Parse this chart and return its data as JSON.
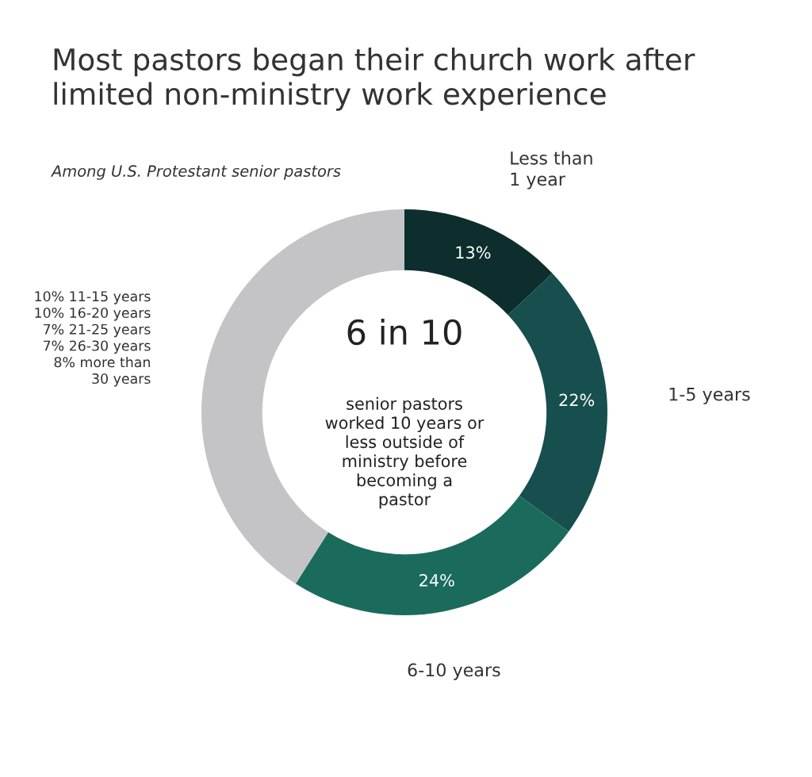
{
  "chart_data": {
    "type": "donut",
    "title": "Most pastors began their church work after\nlimited non-ministry work experience",
    "subtitle": "Among U.S. Protestant senior pastors",
    "categories": [
      "Less than\n1 year",
      "1-5 years",
      "6-10 years",
      "10% 11-15 years\n10% 16-20 years\n7% 21-25 years\n7% 26-30 years\n8% more than\n30 years"
    ],
    "values": [
      13,
      22,
      24,
      41
    ],
    "colors": [
      "#0d2e2c",
      "#164f4d",
      "#1a6b5c",
      "#c4c4c6"
    ],
    "value_labels": [
      "13%",
      "22%",
      "24%",
      null
    ],
    "annotations": [
      "6 in 10",
      "senior pastors\nworked 10 years or\nless outside of\nministry before\nbecoming a\npastor"
    ]
  }
}
